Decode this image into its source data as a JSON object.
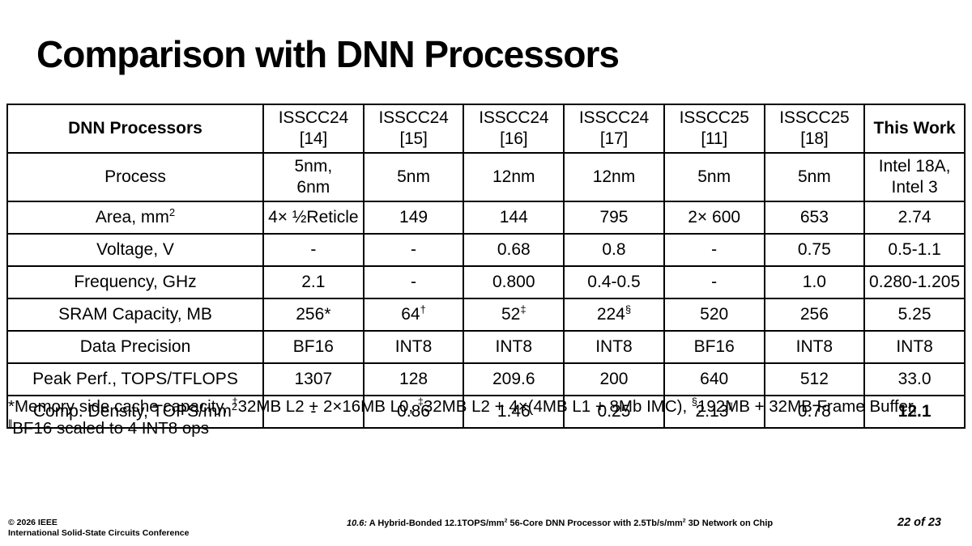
{
  "title": "Comparison with DNN Processors",
  "colors": {
    "text": "#000000",
    "background": "#ffffff",
    "table_border": "#000000"
  },
  "table": {
    "header": {
      "corner": "DNN Processors",
      "columns": [
        "ISSCC24 [14]",
        "ISSCC24 [15]",
        "ISSCC24 [16]",
        "ISSCC24 [17]",
        "ISSCC25 [11]",
        "ISSCC25 [18]",
        "This Work"
      ]
    },
    "rows": [
      {
        "label": [
          {
            "t": "Process"
          }
        ],
        "cells": [
          [
            {
              "t": "5nm,\n6nm"
            }
          ],
          [
            {
              "t": "5nm"
            }
          ],
          [
            {
              "t": "12nm"
            }
          ],
          [
            {
              "t": "12nm"
            }
          ],
          [
            {
              "t": "5nm"
            }
          ],
          [
            {
              "t": "5nm"
            }
          ],
          [
            {
              "t": "Intel 18A,\nIntel 3"
            }
          ]
        ]
      },
      {
        "label": [
          {
            "t": "Area, mm"
          },
          {
            "t": "2",
            "sup": true
          }
        ],
        "cells": [
          [
            {
              "t": "4× ½Reticle"
            }
          ],
          [
            {
              "t": "149"
            }
          ],
          [
            {
              "t": "144"
            }
          ],
          [
            {
              "t": "795"
            }
          ],
          [
            {
              "t": "2× 600"
            }
          ],
          [
            {
              "t": "653"
            }
          ],
          [
            {
              "t": "2.74"
            }
          ]
        ]
      },
      {
        "label": [
          {
            "t": "Voltage, V"
          }
        ],
        "cells": [
          [
            {
              "t": "-"
            }
          ],
          [
            {
              "t": "-"
            }
          ],
          [
            {
              "t": "0.68"
            }
          ],
          [
            {
              "t": "0.8"
            }
          ],
          [
            {
              "t": "-"
            }
          ],
          [
            {
              "t": "0.75"
            }
          ],
          [
            {
              "t": "0.5-1.1"
            }
          ]
        ]
      },
      {
        "label": [
          {
            "t": "Frequency, GHz"
          }
        ],
        "cells": [
          [
            {
              "t": "2.1"
            }
          ],
          [
            {
              "t": "-"
            }
          ],
          [
            {
              "t": "0.800"
            }
          ],
          [
            {
              "t": "0.4-0.5"
            }
          ],
          [
            {
              "t": "-"
            }
          ],
          [
            {
              "t": "1.0"
            }
          ],
          [
            {
              "t": "0.280-1.205"
            }
          ]
        ]
      },
      {
        "label": [
          {
            "t": "SRAM Capacity, MB"
          }
        ],
        "cells": [
          [
            {
              "t": "256*"
            }
          ],
          [
            {
              "t": "64"
            },
            {
              "t": "†",
              "sup": true
            }
          ],
          [
            {
              "t": "52"
            },
            {
              "t": "‡",
              "sup": true
            }
          ],
          [
            {
              "t": "224"
            },
            {
              "t": "§",
              "sup": true
            }
          ],
          [
            {
              "t": "520"
            }
          ],
          [
            {
              "t": "256"
            }
          ],
          [
            {
              "t": "5.25"
            }
          ]
        ]
      },
      {
        "label": [
          {
            "t": "Data Precision"
          }
        ],
        "cells": [
          [
            {
              "t": "BF16"
            }
          ],
          [
            {
              "t": "INT8"
            }
          ],
          [
            {
              "t": "INT8"
            }
          ],
          [
            {
              "t": "INT8"
            }
          ],
          [
            {
              "t": "BF16"
            }
          ],
          [
            {
              "t": "INT8"
            }
          ],
          [
            {
              "t": "INT8"
            }
          ]
        ]
      },
      {
        "label": [
          {
            "t": "Peak Perf., TOPS/TFLOPS"
          }
        ],
        "cells": [
          [
            {
              "t": "1307"
            }
          ],
          [
            {
              "t": "128"
            }
          ],
          [
            {
              "t": "209.6"
            }
          ],
          [
            {
              "t": "200"
            }
          ],
          [
            {
              "t": "640"
            }
          ],
          [
            {
              "t": "512"
            }
          ],
          [
            {
              "t": "33.0"
            }
          ]
        ]
      },
      {
        "label": [
          {
            "t": "Comp. Density, TOPS/mm"
          },
          {
            "t": "2",
            "sup": true
          }
        ],
        "cells": [
          [
            {
              "t": "-"
            }
          ],
          [
            {
              "t": "0.86"
            }
          ],
          [
            {
              "t": "1.46"
            }
          ],
          [
            {
              "t": "0.25"
            }
          ],
          [
            {
              "t": "2.13"
            },
            {
              "t": "‖",
              "sup": true
            }
          ],
          [
            {
              "t": "0.78"
            }
          ],
          [
            {
              "t": "12.1",
              "b": true
            }
          ]
        ]
      }
    ]
  },
  "footnote_segments": [
    {
      "t": "*Memory side cache capacity, "
    },
    {
      "t": "†",
      "sup": true
    },
    {
      "t": "32MB L2 + 2×16MB L0, "
    },
    {
      "t": "‡",
      "sup": true
    },
    {
      "t": "32MB L2 + 4×(4MB L1 + 8Mb IMC), "
    },
    {
      "t": "§",
      "sup": true
    },
    {
      "t": "192MB + 32MB Frame Buffer,\n"
    },
    {
      "t": "‖",
      "sup": true
    },
    {
      "t": "BF16 scaled to 4 INT8 ops"
    }
  ],
  "footer": {
    "copyright_line1": "© 2026 IEEE",
    "copyright_line2": "International Solid-State Circuits Conference",
    "paper_title_segments": [
      {
        "t": "10.6:",
        "i": true
      },
      {
        "t": " A Hybrid-Bonded 12.1TOPS/mm"
      },
      {
        "t": "2",
        "sup": true
      },
      {
        "t": " 56-Core DNN Processor with 2.5Tb/s/mm"
      },
      {
        "t": "2",
        "sup": true
      },
      {
        "t": " 3D Network on Chip"
      }
    ],
    "page": "22 of 23"
  }
}
